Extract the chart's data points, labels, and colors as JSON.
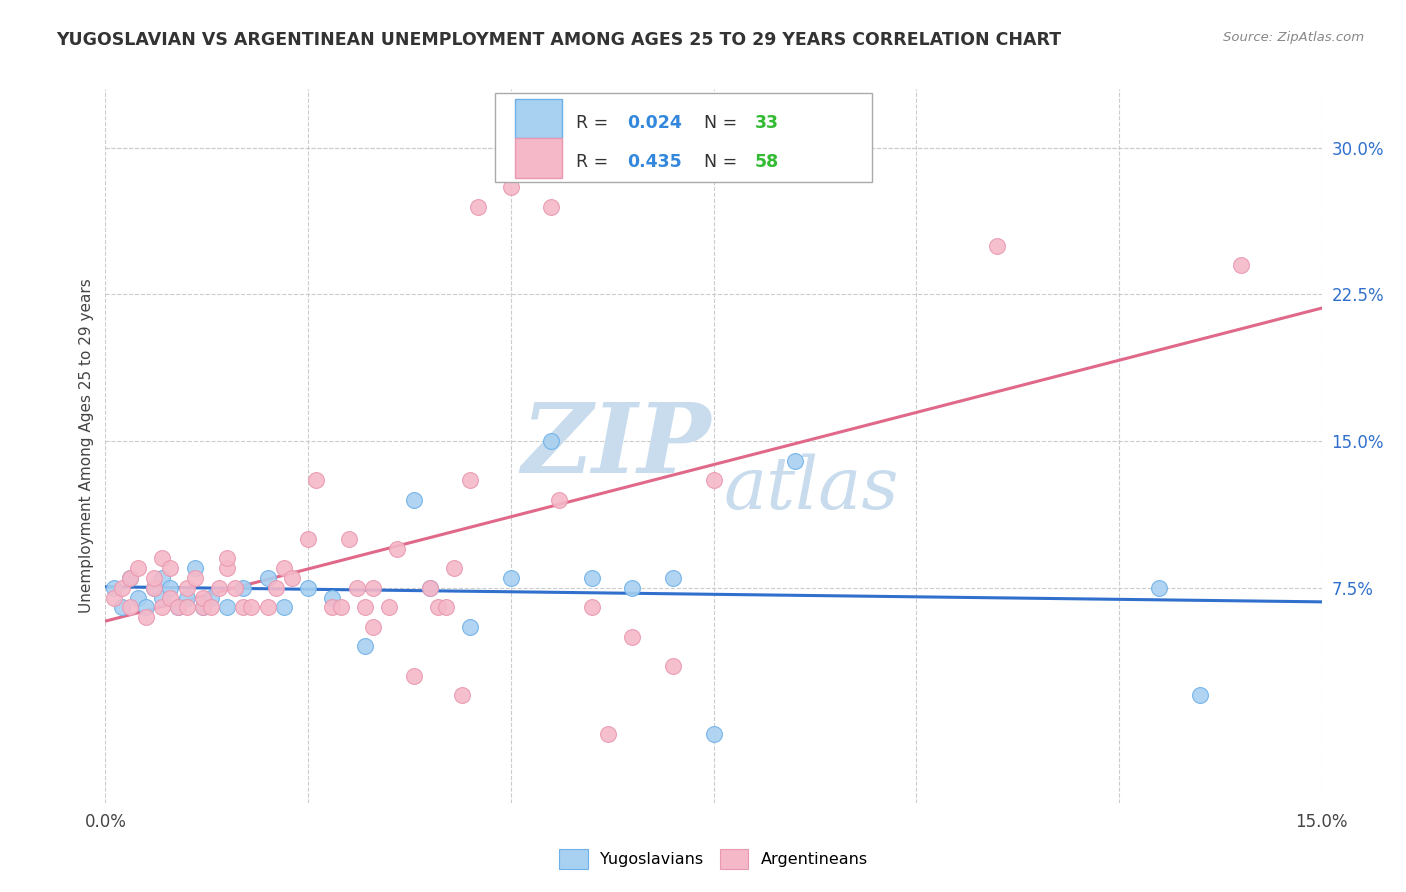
{
  "title": "YUGOSLAVIAN VS ARGENTINEAN UNEMPLOYMENT AMONG AGES 25 TO 29 YEARS CORRELATION CHART",
  "source": "Source: ZipAtlas.com",
  "ylabel": "Unemployment Among Ages 25 to 29 years",
  "xlim": [
    0.0,
    0.15
  ],
  "ylim": [
    -0.035,
    0.33
  ],
  "ytick_labels_right": [
    "7.5%",
    "15.0%",
    "22.5%",
    "30.0%"
  ],
  "ytick_vals_right": [
    0.075,
    0.15,
    0.225,
    0.3
  ],
  "legend_r1": "0.024",
  "legend_n1": "33",
  "legend_r2": "0.435",
  "legend_n2": "58",
  "color_yugo": "#A8D0F0",
  "color_yugo_edge": "#6EB0E8",
  "color_yugo_line": "#3070CC",
  "color_arg": "#F5B8C8",
  "color_arg_edge": "#E898B0",
  "color_arg_line": "#E06888",
  "color_r_text": "#3388DD",
  "color_n_text": "#33BB33",
  "background": "#FFFFFF",
  "watermark_color": "#C8DCEE",
  "yugo_x": [
    0.001,
    0.002,
    0.003,
    0.004,
    0.005,
    0.006,
    0.007,
    0.007,
    0.008,
    0.009,
    0.01,
    0.011,
    0.012,
    0.013,
    0.015,
    0.017,
    0.02,
    0.022,
    0.025,
    0.028,
    0.032,
    0.038,
    0.04,
    0.045,
    0.05,
    0.055,
    0.06,
    0.065,
    0.07,
    0.075,
    0.085,
    0.13,
    0.135
  ],
  "yugo_y": [
    0.075,
    0.065,
    0.08,
    0.07,
    0.065,
    0.075,
    0.08,
    0.07,
    0.075,
    0.065,
    0.07,
    0.085,
    0.065,
    0.07,
    0.065,
    0.075,
    0.08,
    0.065,
    0.075,
    0.07,
    0.045,
    0.12,
    0.075,
    0.055,
    0.08,
    0.15,
    0.08,
    0.075,
    0.08,
    0.0,
    0.14,
    0.075,
    0.02
  ],
  "arg_x": [
    0.001,
    0.002,
    0.003,
    0.003,
    0.004,
    0.005,
    0.006,
    0.006,
    0.007,
    0.007,
    0.008,
    0.008,
    0.009,
    0.01,
    0.01,
    0.011,
    0.012,
    0.012,
    0.013,
    0.014,
    0.015,
    0.015,
    0.016,
    0.017,
    0.018,
    0.02,
    0.021,
    0.022,
    0.023,
    0.025,
    0.026,
    0.028,
    0.029,
    0.03,
    0.031,
    0.032,
    0.033,
    0.033,
    0.035,
    0.036,
    0.038,
    0.04,
    0.041,
    0.042,
    0.043,
    0.044,
    0.045,
    0.046,
    0.05,
    0.055,
    0.056,
    0.06,
    0.062,
    0.065,
    0.07,
    0.075,
    0.11,
    0.14
  ],
  "arg_y": [
    0.07,
    0.075,
    0.065,
    0.08,
    0.085,
    0.06,
    0.075,
    0.08,
    0.09,
    0.065,
    0.07,
    0.085,
    0.065,
    0.065,
    0.075,
    0.08,
    0.065,
    0.07,
    0.065,
    0.075,
    0.085,
    0.09,
    0.075,
    0.065,
    0.065,
    0.065,
    0.075,
    0.085,
    0.08,
    0.1,
    0.13,
    0.065,
    0.065,
    0.1,
    0.075,
    0.065,
    0.055,
    0.075,
    0.065,
    0.095,
    0.03,
    0.075,
    0.065,
    0.065,
    0.085,
    0.02,
    0.13,
    0.27,
    0.28,
    0.27,
    0.12,
    0.065,
    0.0,
    0.05,
    0.035,
    0.13,
    0.25,
    0.24
  ],
  "yugo_line_x": [
    0.0,
    0.15
  ],
  "yugo_line_y": [
    0.073,
    0.079
  ],
  "arg_line_x": [
    0.0,
    0.15
  ],
  "arg_line_y": [
    0.048,
    0.225
  ]
}
